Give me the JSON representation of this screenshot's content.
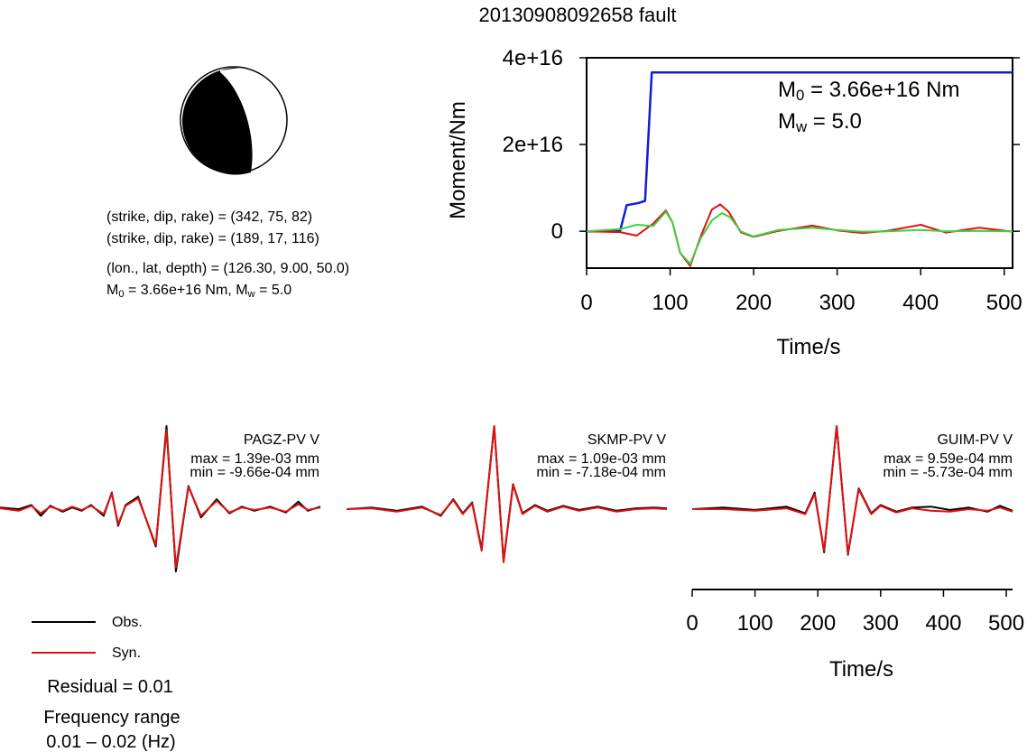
{
  "title": "20130908092658 fault",
  "source_params": {
    "line1": "(strike, dip, rake) = (342, 75, 82)",
    "line2": "(strike, dip, rake) = (189, 17, 116)",
    "line3": "(lon., lat, depth) = (126.30, 9.00, 50.0)",
    "line4_m0_prefix": "M",
    "line4_m0_sub": "0",
    "line4_m0_value": " = 3.66e+16 Nm, M",
    "line4_mw_sub": "w",
    "line4_mw_value": " = 5.0"
  },
  "colors": {
    "moment": "#1020d0",
    "obs": "#000000",
    "syn": "#e01010",
    "green": "#40d040",
    "beachball": "#000000"
  },
  "chart_data": [
    {
      "type": "line",
      "title": "",
      "xlabel": "Time/s",
      "ylabel": "Moment/Nm",
      "xlim": [
        0,
        510
      ],
      "ylim": [
        -8500000000000000.0,
        4e+16
      ],
      "x_ticks": [
        0,
        100,
        200,
        300,
        400,
        500
      ],
      "x_tick_labels": [
        "0",
        "100",
        "200",
        "300",
        "400",
        "500"
      ],
      "y_ticks": [
        0,
        2e+16,
        4e+16
      ],
      "y_tick_labels": [
        "0",
        "2e+16",
        "4e+16"
      ],
      "annotation": {
        "m0_prefix": "M",
        "m0_sub": "0",
        "m0_value": " = 3.66e+16 Nm",
        "mw_prefix": "M",
        "mw_sub": "w",
        "mw_value": " = 5.0"
      },
      "series": [
        {
          "color": "moment",
          "x": [
            0,
            40,
            48,
            62,
            70,
            78,
            510
          ],
          "y": [
            0,
            0,
            6000000000000000.0,
            6500000000000000.0,
            7000000000000000.0,
            3.66e+16,
            3.66e+16
          ]
        },
        {
          "color": "syn",
          "x": [
            0,
            40,
            60,
            80,
            95,
            103,
            112,
            124,
            137,
            150,
            160,
            170,
            185,
            200,
            230,
            270,
            300,
            330,
            360,
            400,
            430,
            470,
            510
          ],
          "y": [
            0,
            -200000000000000.0,
            -1000000000000000.0,
            1800000000000000.0,
            4800000000000000.0,
            2000000000000000.0,
            -5000000000000000.0,
            -8000000000000000.0,
            -1000000000000000.0,
            5000000000000000.0,
            6200000000000000.0,
            4500000000000000.0,
            -300000000000000.0,
            -1300000000000000.0,
            100000000000000.0,
            1300000000000000.0,
            200000000000000.0,
            -400000000000000.0,
            100000000000000.0,
            1500000000000000.0,
            -300000000000000.0,
            800000000000000.0,
            -100000000000000.0
          ]
        },
        {
          "color": "green",
          "x": [
            0,
            40,
            60,
            80,
            95,
            103,
            112,
            124,
            137,
            150,
            162,
            172,
            185,
            200,
            230,
            270,
            300,
            330,
            360,
            400,
            430,
            470,
            510
          ],
          "y": [
            0,
            500000000000000.0,
            1500000000000000.0,
            1200000000000000.0,
            4500000000000000.0,
            2000000000000000.0,
            -5000000000000000.0,
            -7500000000000000.0,
            -1500000000000000.0,
            2500000000000000.0,
            4200000000000000.0,
            3200000000000000.0,
            -100000000000000.0,
            -1200000000000000.0,
            300000000000000.0,
            800000000000000.0,
            300000000000000.0,
            -100000000000000.0,
            0,
            300000000000000.0,
            0,
            100000000000000.0,
            0
          ]
        }
      ]
    },
    {
      "type": "line",
      "xlabel": "Time/s",
      "xlim": [
        0,
        510
      ],
      "ylim": [
        -1.1,
        1.1
      ],
      "x_ticks": [
        0,
        100,
        200,
        300,
        400,
        500
      ],
      "x_tick_labels": [
        "0",
        "100",
        "200",
        "300",
        "400",
        "500"
      ],
      "stations": [
        {
          "name": "PAGZ-PV V",
          "max_label": "max = 1.39e-03 mm",
          "min_label": "min = -9.66e-04 mm",
          "obs": {
            "x": [
              0,
              30,
              50,
              65,
              80,
              100,
              115,
              130,
              145,
              165,
              178,
              188,
              200,
              220,
              248,
              265,
              280,
              300,
              320,
              345,
              365,
              385,
              405,
              430,
              455,
              475,
              490,
              510
            ],
            "y": [
              0.02,
              0.0,
              0.05,
              -0.08,
              0.04,
              -0.03,
              0.02,
              -0.02,
              0.05,
              -0.08,
              0.2,
              -0.2,
              0.05,
              0.15,
              -0.45,
              1.0,
              -0.75,
              0.28,
              -0.1,
              0.12,
              -0.05,
              0.03,
              -0.02,
              0.03,
              -0.04,
              0.09,
              -0.02,
              0.03
            ]
          },
          "syn": {
            "x": [
              0,
              30,
              50,
              65,
              80,
              100,
              115,
              130,
              145,
              165,
              178,
              188,
              200,
              220,
              248,
              265,
              280,
              300,
              320,
              345,
              365,
              385,
              405,
              430,
              455,
              475,
              490,
              510
            ],
            "y": [
              0.01,
              -0.02,
              0.04,
              -0.05,
              0.03,
              -0.02,
              0.03,
              -0.01,
              0.04,
              -0.06,
              0.19,
              -0.18,
              0.04,
              0.13,
              -0.43,
              0.95,
              -0.7,
              0.27,
              -0.08,
              0.1,
              -0.04,
              0.02,
              -0.01,
              0.02,
              -0.03,
              0.06,
              -0.01,
              0.02
            ]
          }
        },
        {
          "name": "SKMP-PV V",
          "max_label": "max = 1.09e-03 mm",
          "min_label": "min = -7.18e-04 mm",
          "obs": {
            "x": [
              0,
              40,
              80,
              120,
              150,
              170,
              185,
              200,
              215,
              235,
              250,
              265,
              280,
              300,
              320,
              345,
              370,
              400,
              430,
              460,
              490,
              510
            ],
            "y": [
              0.0,
              0.02,
              -0.02,
              0.03,
              -0.08,
              0.12,
              -0.05,
              0.08,
              -0.48,
              1.0,
              -0.62,
              0.3,
              -0.05,
              0.05,
              -0.02,
              0.04,
              -0.01,
              0.03,
              -0.02,
              0.01,
              0.02,
              0.01
            ]
          },
          "syn": {
            "x": [
              0,
              40,
              80,
              120,
              150,
              170,
              185,
              200,
              215,
              235,
              250,
              265,
              280,
              300,
              320,
              345,
              370,
              400,
              430,
              460,
              490,
              510
            ],
            "y": [
              0.0,
              0.01,
              -0.03,
              0.02,
              -0.07,
              0.11,
              -0.06,
              0.07,
              -0.5,
              1.0,
              -0.64,
              0.29,
              -0.06,
              0.04,
              -0.03,
              0.03,
              -0.02,
              0.02,
              -0.03,
              0.0,
              0.01,
              0.0
            ]
          }
        },
        {
          "name": "GUIM-PV V",
          "max_label": "max = 9.59e-04 mm",
          "min_label": "min = -5.73e-04 mm",
          "obs": {
            "x": [
              0,
              50,
              100,
              150,
              180,
              195,
              210,
              230,
              248,
              265,
              285,
              300,
              325,
              350,
              380,
              410,
              440,
              470,
              490,
              510
            ],
            "y": [
              0.0,
              0.02,
              -0.01,
              0.03,
              -0.05,
              0.2,
              -0.52,
              1.0,
              -0.55,
              0.25,
              -0.05,
              0.05,
              -0.03,
              0.02,
              0.03,
              -0.01,
              0.02,
              -0.03,
              0.04,
              -0.02
            ]
          },
          "syn": {
            "x": [
              0,
              50,
              100,
              150,
              180,
              195,
              210,
              230,
              248,
              265,
              285,
              300,
              325,
              350,
              380,
              410,
              440,
              470,
              490,
              510
            ],
            "y": [
              0.0,
              0.0,
              -0.02,
              0.01,
              -0.06,
              0.18,
              -0.5,
              1.0,
              -0.54,
              0.24,
              -0.06,
              0.04,
              -0.04,
              0.01,
              -0.02,
              -0.03,
              0.0,
              -0.02,
              0.02,
              -0.03
            ]
          }
        }
      ]
    }
  ],
  "legend": {
    "obs_label": "Obs.",
    "syn_label": "Syn."
  },
  "footer": {
    "residual": "Residual = 0.01",
    "freq_label": "Frequency range",
    "freq_value": "0.01 – 0.02 (Hz)"
  }
}
